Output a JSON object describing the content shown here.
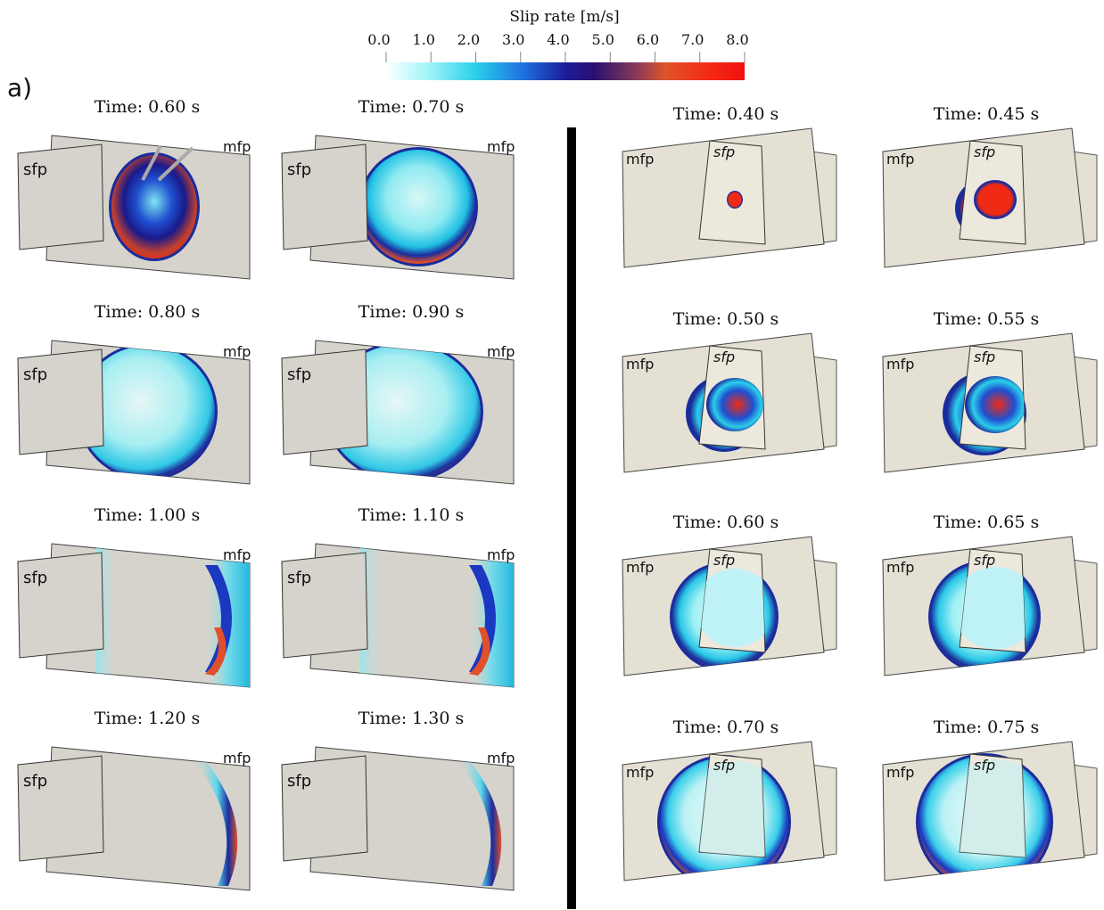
{
  "colorbar": {
    "title": "Slip rate [m/s]",
    "ticks": [
      "0.0",
      "1.0",
      "2.0",
      "3.0",
      "4.0",
      "5.0",
      "6.0",
      "7.0",
      "8.0"
    ],
    "stops": [
      "#ffffff",
      "#7ff0f5",
      "#12bfe3",
      "#1a4fd8",
      "#14107a",
      "#6a2a6e",
      "#e05a2c",
      "#f02a14",
      "#f01010"
    ]
  },
  "panel_label": "a)",
  "plane_labels": {
    "main": "mfp",
    "secondary": "sfp"
  },
  "left_group": [
    {
      "time": "Time: 0.60 s",
      "state": "early"
    },
    {
      "time": "Time: 0.70 s",
      "state": "ring"
    },
    {
      "time": "Time: 0.80 s",
      "state": "wide"
    },
    {
      "time": "Time: 0.90 s",
      "state": "wider"
    },
    {
      "time": "Time: 1.00 s",
      "state": "fading"
    },
    {
      "time": "Time: 1.10 s",
      "state": "fading2"
    },
    {
      "time": "Time: 1.20 s",
      "state": "edge"
    },
    {
      "time": "Time: 1.30 s",
      "state": "edge2"
    }
  ],
  "right_group": [
    {
      "time": "Time: 0.40 s",
      "state": "nucleus"
    },
    {
      "time": "Time: 0.45 s",
      "state": "nucleus2"
    },
    {
      "time": "Time: 0.50 s",
      "state": "grow"
    },
    {
      "time": "Time: 0.55 s",
      "state": "grow2"
    },
    {
      "time": "Time: 0.60 s",
      "state": "spread"
    },
    {
      "time": "Time: 0.65 s",
      "state": "spread2"
    },
    {
      "time": "Time: 0.70 s",
      "state": "large"
    },
    {
      "time": "Time: 0.75 s",
      "state": "large2"
    }
  ]
}
